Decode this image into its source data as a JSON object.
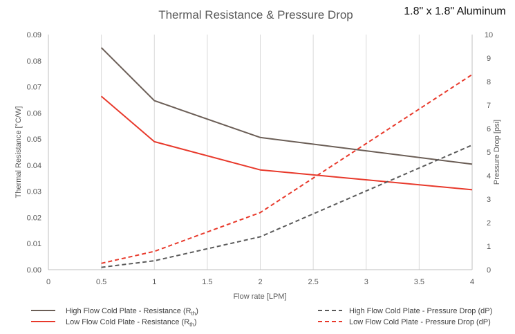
{
  "chart_data": {
    "type": "line",
    "title": "Thermal Resistance & Pressure Drop",
    "subtitle": "1.8\" x 1.8\" Aluminum",
    "xlabel": "Flow rate [LPM]",
    "ylabel": "Thermal Resistance [°C/W]",
    "y2label": "Pressure Drop [psi]",
    "xlim": [
      0,
      4
    ],
    "ylim": [
      0,
      0.09
    ],
    "y2lim": [
      0,
      10
    ],
    "x_ticks": [
      "0",
      "0.5",
      "1",
      "1.5",
      "2",
      "2.5",
      "3",
      "3.5",
      "4"
    ],
    "y_ticks": [
      "0.00",
      "0.01",
      "0.02",
      "0.03",
      "0.04",
      "0.05",
      "0.06",
      "0.07",
      "0.08",
      "0.09"
    ],
    "y2_ticks": [
      "0",
      "1",
      "2",
      "3",
      "4",
      "5",
      "6",
      "7",
      "8",
      "9",
      "10"
    ],
    "grid": "vertical",
    "legend_position": "bottom",
    "series": [
      {
        "name": "High Flow Cold Plate - Resistance",
        "legend_sub": "th",
        "axis": "left",
        "color": "#6b5e56",
        "dash": "solid",
        "x": [
          0.5,
          1,
          2,
          4
        ],
        "y": [
          0.085,
          0.0647,
          0.0506,
          0.0404
        ]
      },
      {
        "name": "Low Flow Cold Plate - Resistance",
        "legend_sub": "th",
        "axis": "left",
        "color": "#e8392b",
        "dash": "solid",
        "x": [
          0.5,
          1,
          2,
          4
        ],
        "y": [
          0.0664,
          0.049,
          0.0382,
          0.0306
        ]
      },
      {
        "name": "High Flow Cold Plate - Pressure Drop (dP)",
        "axis": "right",
        "color": "#5a5a5a",
        "dash": "dashed",
        "x": [
          0.5,
          1,
          2,
          4
        ],
        "y": [
          0.1,
          0.38,
          1.4,
          5.3
        ]
      },
      {
        "name": "Low Flow Cold Plate - Pressure Drop (dP)",
        "axis": "right",
        "color": "#e8392b",
        "dash": "dashed",
        "x": [
          0.5,
          1,
          2,
          4
        ],
        "y": [
          0.27,
          0.78,
          2.43,
          8.3
        ]
      }
    ]
  }
}
